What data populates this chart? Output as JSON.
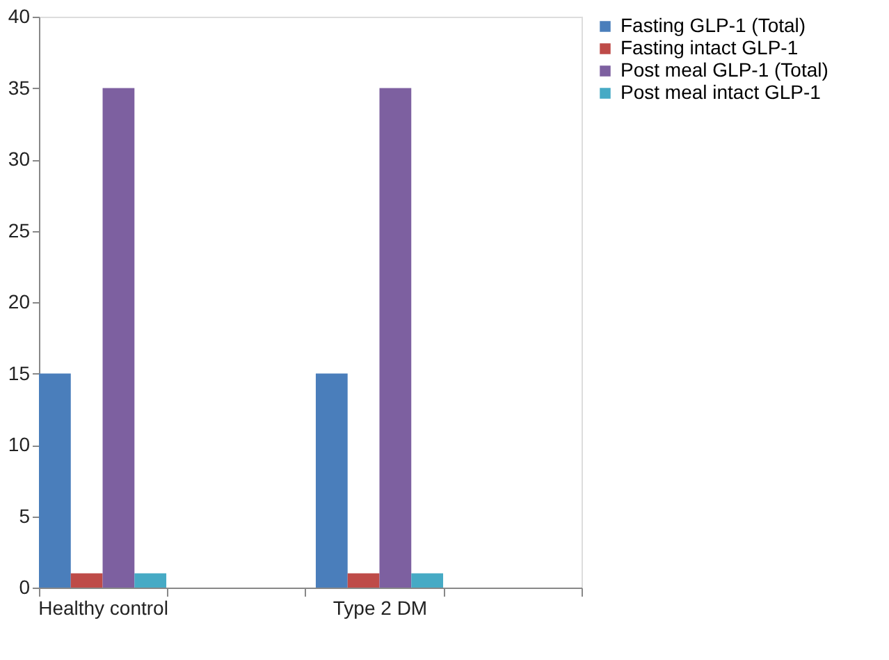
{
  "chart_data": {
    "type": "bar",
    "categories": [
      "Healthy control",
      null,
      "Type 2 DM",
      null
    ],
    "series": [
      {
        "name": "Fasting GLP-1 (Total)",
        "color": "#4a7ebb",
        "values": [
          15,
          null,
          15,
          null
        ]
      },
      {
        "name": "Fasting intact GLP-1",
        "color": "#be4b48",
        "values": [
          1,
          null,
          1,
          null
        ]
      },
      {
        "name": "Post meal GLP-1 (Total)",
        "color": "#7d60a0",
        "values": [
          35,
          null,
          35,
          null
        ]
      },
      {
        "name": "Post meal intact GLP-1",
        "color": "#46aac5",
        "values": [
          1,
          null,
          1,
          null
        ]
      }
    ],
    "ylim": [
      0,
      40
    ],
    "yticks": [
      0,
      5,
      10,
      15,
      20,
      25,
      30,
      35,
      40
    ],
    "grid": false,
    "legend": "right"
  }
}
